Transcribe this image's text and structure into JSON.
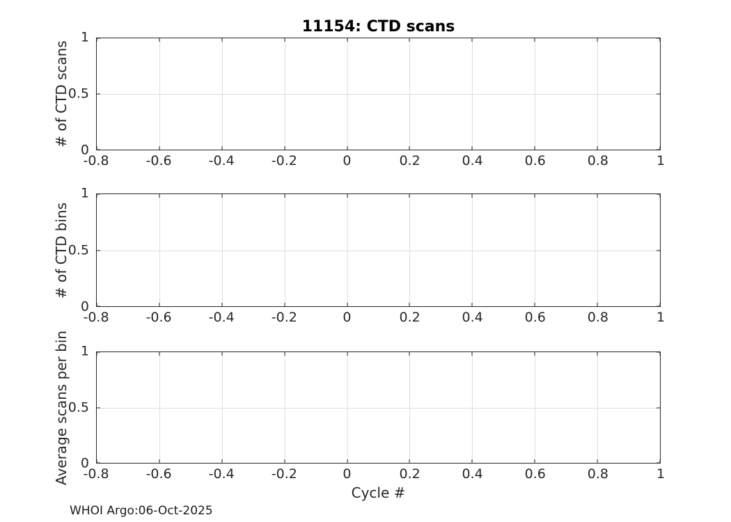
{
  "figure": {
    "title": "11154: CTD scans",
    "xlabel": "Cycle #",
    "footer": "WHOI Argo:06-Oct-2025"
  },
  "colors": {
    "axis": "#262626",
    "grid": "#dedede",
    "title-color": "#000000",
    "bg": "#ffffff"
  },
  "chart_data": [
    {
      "type": "line",
      "title": "11154: CTD scans",
      "ylabel": "# of CTD scans",
      "xlabel": "",
      "xlim": [
        -0.8,
        1
      ],
      "ylim": [
        0,
        1
      ],
      "xticks": [
        -0.8,
        -0.6,
        -0.4,
        -0.2,
        0,
        0.2,
        0.4,
        0.6,
        0.8,
        1
      ],
      "xtick_labels": [
        "-0.8",
        "-0.6",
        "-0.4",
        "-0.2",
        "0",
        "0.2",
        "0.4",
        "0.6",
        "0.8",
        "1"
      ],
      "yticks": [
        0,
        0.5,
        1
      ],
      "ytick_labels": [
        "0",
        "0.5",
        "1"
      ],
      "grid": true,
      "legend": null,
      "series": []
    },
    {
      "type": "line",
      "title": "",
      "ylabel": "# of CTD bins",
      "xlabel": "",
      "xlim": [
        -0.8,
        1
      ],
      "ylim": [
        0,
        1
      ],
      "xticks": [
        -0.8,
        -0.6,
        -0.4,
        -0.2,
        0,
        0.2,
        0.4,
        0.6,
        0.8,
        1
      ],
      "xtick_labels": [
        "-0.8",
        "-0.6",
        "-0.4",
        "-0.2",
        "0",
        "0.2",
        "0.4",
        "0.6",
        "0.8",
        "1"
      ],
      "yticks": [
        0,
        0.5,
        1
      ],
      "ytick_labels": [
        "0",
        "0.5",
        "1"
      ],
      "grid": true,
      "legend": null,
      "series": []
    },
    {
      "type": "line",
      "title": "",
      "ylabel": "Average scans per bin",
      "xlabel": "Cycle #",
      "xlim": [
        -0.8,
        1
      ],
      "ylim": [
        0,
        1
      ],
      "xticks": [
        -0.8,
        -0.6,
        -0.4,
        -0.2,
        0,
        0.2,
        0.4,
        0.6,
        0.8,
        1
      ],
      "xtick_labels": [
        "-0.8",
        "-0.6",
        "-0.4",
        "-0.2",
        "0",
        "0.2",
        "0.4",
        "0.6",
        "0.8",
        "1"
      ],
      "yticks": [
        0,
        0.5,
        1
      ],
      "ytick_labels": [
        "0",
        "0.5",
        "1"
      ],
      "grid": true,
      "legend": null,
      "series": []
    }
  ]
}
